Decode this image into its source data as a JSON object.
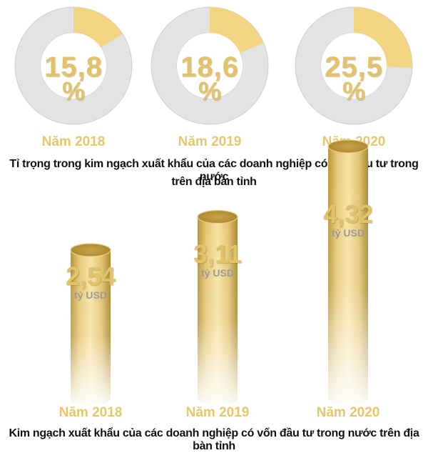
{
  "colors": {
    "accent": "#f3d483",
    "ring": "#e3e3e3",
    "ring_edge": "#cfcfcf",
    "text_gold": "#e2c26a",
    "unit_gray": "#9a9a9a",
    "caption": "#111111"
  },
  "chart_data": [
    {
      "type": "pie",
      "title": "Tỉ trọng trong kim ngạch xuất khẩu của các doanh nghiệp có vốn đầu tư trong nước trên địa bàn tỉnh",
      "title_line1": "Tỉ trọng trong kim ngạch xuất khẩu của các doanh nghiệp có vốn đầu tư trong nước",
      "title_line2": "trên địa bàn tỉnh",
      "categories": [
        "Năm 2018",
        "Năm 2019",
        "Năm 2020"
      ],
      "values": [
        15.8,
        18.6,
        25.5
      ],
      "value_labels": [
        "15,8",
        "18,6",
        "25,5"
      ],
      "unit": "%"
    },
    {
      "type": "bar",
      "title": "Kim ngạch xuất khẩu của các doanh nghiệp có vốn đầu tư trong nước trên địa bàn tỉnh",
      "categories": [
        "Năm 2018",
        "Năm 2019",
        "Năm 2020"
      ],
      "values": [
        2.54,
        3.11,
        4.32
      ],
      "value_labels": [
        "2,54",
        "3,11",
        "4,32"
      ],
      "unit": "tỷ USD",
      "xlabel": "",
      "ylabel": ""
    }
  ]
}
